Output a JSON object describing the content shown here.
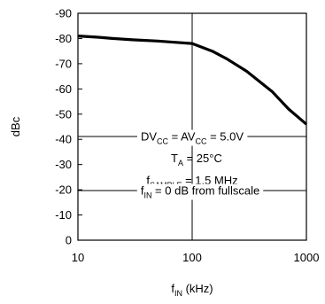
{
  "chart_data": {
    "type": "line",
    "title": "",
    "xscale": "log",
    "xlim": [
      10,
      1000
    ],
    "ylim": [
      0,
      -90
    ],
    "grid": true,
    "xlabel": {
      "main": "f",
      "sub": "IN",
      "unit": " (kHz)"
    },
    "ylabel": "dBc",
    "x_tick_labels": [
      "10",
      "100",
      "1000"
    ],
    "y_tick_labels": [
      "-90",
      "-80",
      "-70",
      "-60",
      "-50",
      "-40",
      "-30",
      "-20",
      "-10",
      "0"
    ],
    "series": [
      {
        "x": [
          10,
          15,
          20,
          30,
          50,
          70,
          100,
          150,
          200,
          300,
          500,
          700,
          1000
        ],
        "y": [
          -81,
          -80.5,
          -80,
          -79.5,
          -79,
          -78.5,
          -78,
          -75,
          -72,
          -67,
          -59,
          -52,
          -46
        ]
      }
    ],
    "annotations": {
      "line1": {
        "parts": [
          [
            "DV",
            ""
          ],
          [
            "CC",
            "sub"
          ],
          [
            " = AV",
            ""
          ],
          [
            "CC",
            "sub"
          ],
          [
            " = 5.0V",
            ""
          ]
        ]
      },
      "line2": {
        "parts": [
          [
            "T",
            ""
          ],
          [
            "A",
            "sub"
          ],
          [
            " = 25°C",
            ""
          ]
        ]
      },
      "line3": {
        "parts": [
          [
            "f",
            ""
          ],
          [
            "SAMPLE",
            "sub"
          ],
          [
            " = 1.5 MHz",
            ""
          ]
        ]
      },
      "line4": {
        "parts": [
          [
            "f",
            ""
          ],
          [
            "IN",
            "sub"
          ],
          [
            " = 0 dB from fullscale",
            ""
          ]
        ]
      }
    },
    "line_color": "#000000"
  }
}
